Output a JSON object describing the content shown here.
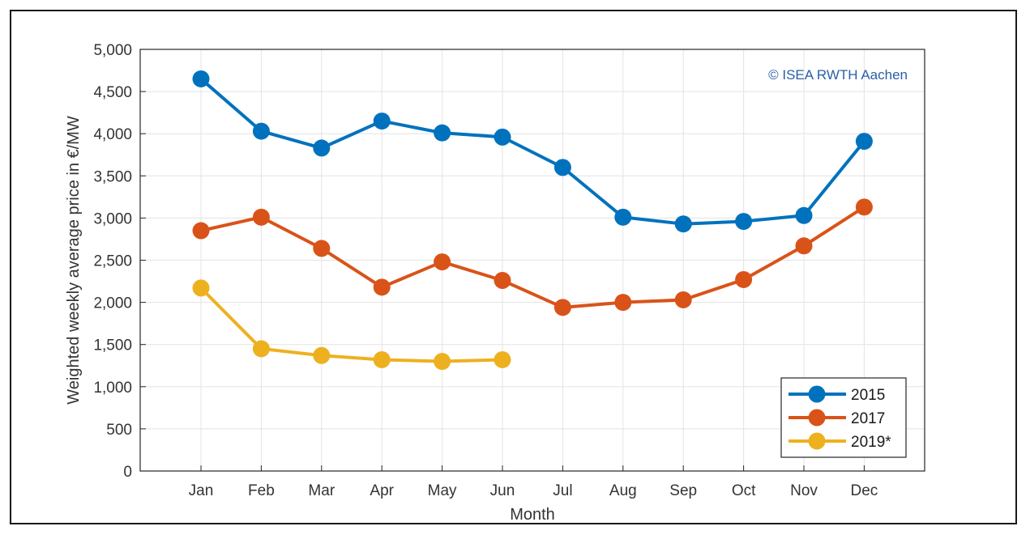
{
  "chart_data": {
    "type": "line",
    "title": "",
    "xlabel": "Month",
    "ylabel": "Weighted weekly average price in €/MW",
    "categories": [
      "Jan",
      "Feb",
      "Mar",
      "Apr",
      "May",
      "Jun",
      "Jul",
      "Aug",
      "Sep",
      "Oct",
      "Nov",
      "Dec"
    ],
    "ylim": [
      0,
      5000
    ],
    "yticks": [
      0,
      500,
      1000,
      1500,
      2000,
      2500,
      3000,
      3500,
      4000,
      4500,
      5000
    ],
    "ytick_labels": [
      "0",
      "500",
      "1,000",
      "1,500",
      "2,000",
      "2,500",
      "3,000",
      "3,500",
      "4,000",
      "4,500",
      "5,000"
    ],
    "grid": true,
    "legend_position": "bottom-right",
    "annotation": "© ISEA RWTH Aachen",
    "series": [
      {
        "name": "2015",
        "color": "#0072bd",
        "values": [
          4650,
          4030,
          3830,
          4150,
          4010,
          3960,
          3600,
          3010,
          2930,
          2960,
          3030,
          3910
        ]
      },
      {
        "name": "2017",
        "color": "#d95319",
        "values": [
          2850,
          3010,
          2640,
          2180,
          2480,
          2260,
          1940,
          2000,
          2030,
          2270,
          2670,
          3130
        ]
      },
      {
        "name": "2019*",
        "color": "#edb120",
        "values": [
          2170,
          1450,
          1370,
          1320,
          1300,
          1320,
          null,
          null,
          null,
          null,
          null,
          null
        ]
      }
    ]
  }
}
